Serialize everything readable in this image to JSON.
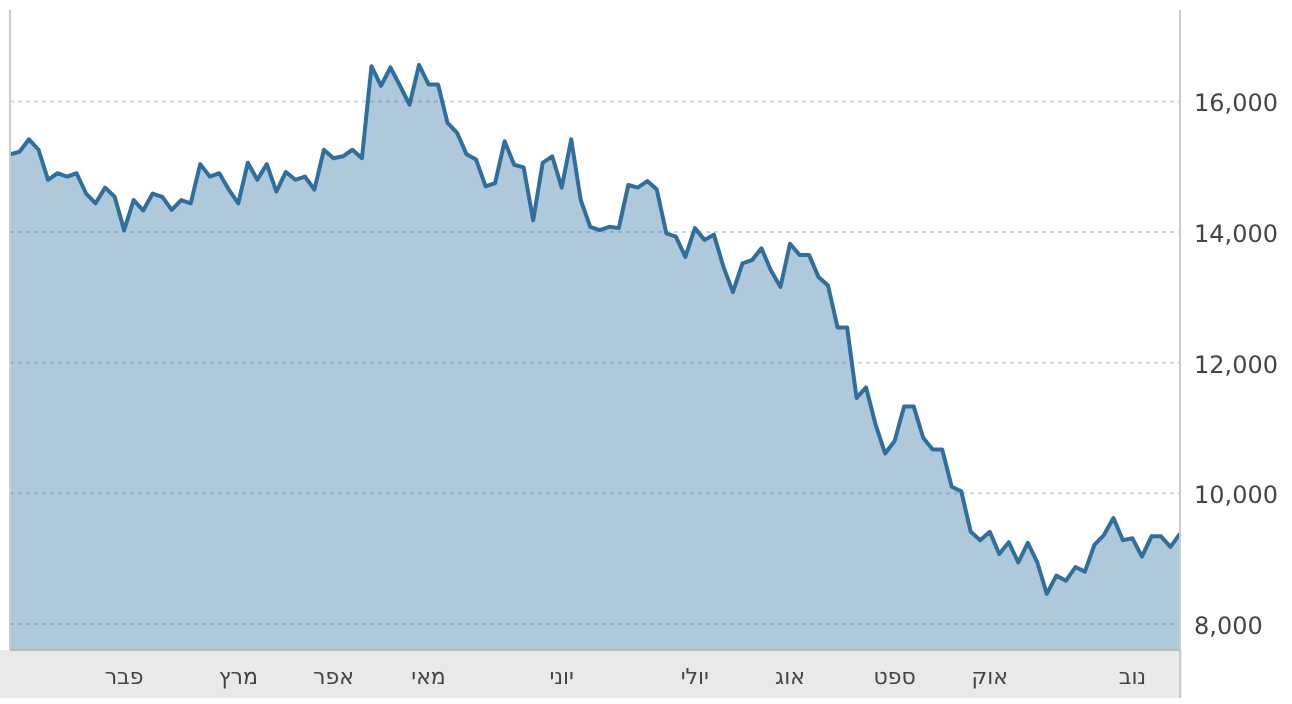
{
  "chart_data": {
    "type": "area",
    "color": "#2e6f9e",
    "grid": "y",
    "categories": [
      null,
      null,
      null,
      null,
      null,
      null,
      null,
      null,
      null,
      null,
      null,
      null,
      "פבר",
      null,
      null,
      null,
      null,
      null,
      null,
      null,
      null,
      null,
      null,
      null,
      "מרץ",
      null,
      null,
      null,
      null,
      null,
      null,
      null,
      null,
      null,
      "אפר",
      null,
      null,
      null,
      null,
      null,
      null,
      null,
      null,
      null,
      "מאי",
      null,
      null,
      null,
      null,
      null,
      null,
      null,
      null,
      null,
      null,
      null,
      null,
      null,
      "יוני",
      null,
      null,
      null,
      null,
      null,
      null,
      null,
      null,
      null,
      null,
      null,
      null,
      null,
      "יולי",
      null,
      null,
      null,
      null,
      null,
      null,
      null,
      null,
      null,
      "אוג",
      null,
      null,
      null,
      null,
      null,
      null,
      null,
      null,
      null,
      null,
      "ספט",
      null,
      null,
      null,
      null,
      null,
      null,
      null,
      null,
      null,
      "אוק",
      null,
      null,
      null,
      null,
      null,
      null,
      null,
      null,
      null,
      null,
      null,
      null,
      null,
      null,
      "נוב",
      null,
      null,
      null,
      null,
      null
    ],
    "values": [
      15190,
      15230,
      15420,
      15260,
      14800,
      14900,
      14850,
      14900,
      14590,
      14440,
      14680,
      14540,
      14030,
      14490,
      14330,
      14590,
      14540,
      14340,
      14490,
      14440,
      15040,
      14850,
      14900,
      14650,
      14440,
      15060,
      14800,
      15040,
      14620,
      14920,
      14800,
      14850,
      14650,
      15260,
      15130,
      15160,
      15260,
      15130,
      16540,
      16240,
      16520,
      16240,
      15950,
      16560,
      16260,
      16260,
      15670,
      15520,
      15190,
      15110,
      14700,
      14750,
      15390,
      15030,
      14990,
      14180,
      15060,
      15160,
      14680,
      15420,
      14490,
      14080,
      14030,
      14080,
      14060,
      14720,
      14680,
      14780,
      14650,
      13980,
      13930,
      13620,
      14060,
      13880,
      13960,
      13470,
      13080,
      13520,
      13570,
      13750,
      13410,
      13160,
      13820,
      13650,
      13650,
      13310,
      13180,
      12540,
      12540,
      11460,
      11620,
      11050,
      10610,
      10800,
      11330,
      11330,
      10850,
      10670,
      10670,
      10100,
      10030,
      9410,
      9280,
      9410,
      9070,
      9250,
      8940,
      9240,
      8940,
      8460,
      8740,
      8660,
      8870,
      8800,
      9210,
      9360,
      9620,
      9280,
      9310,
      9030,
      9340,
      9340,
      9180,
      9380
    ],
    "ylim": [
      7600,
      17400
    ],
    "yticks": [
      {
        "value": 8000,
        "label": "8,000"
      },
      {
        "value": 10000,
        "label": "10,000"
      },
      {
        "value": 12000,
        "label": "12,000"
      },
      {
        "value": 14000,
        "label": "14,000"
      },
      {
        "value": 16000,
        "label": "16,000"
      }
    ]
  }
}
